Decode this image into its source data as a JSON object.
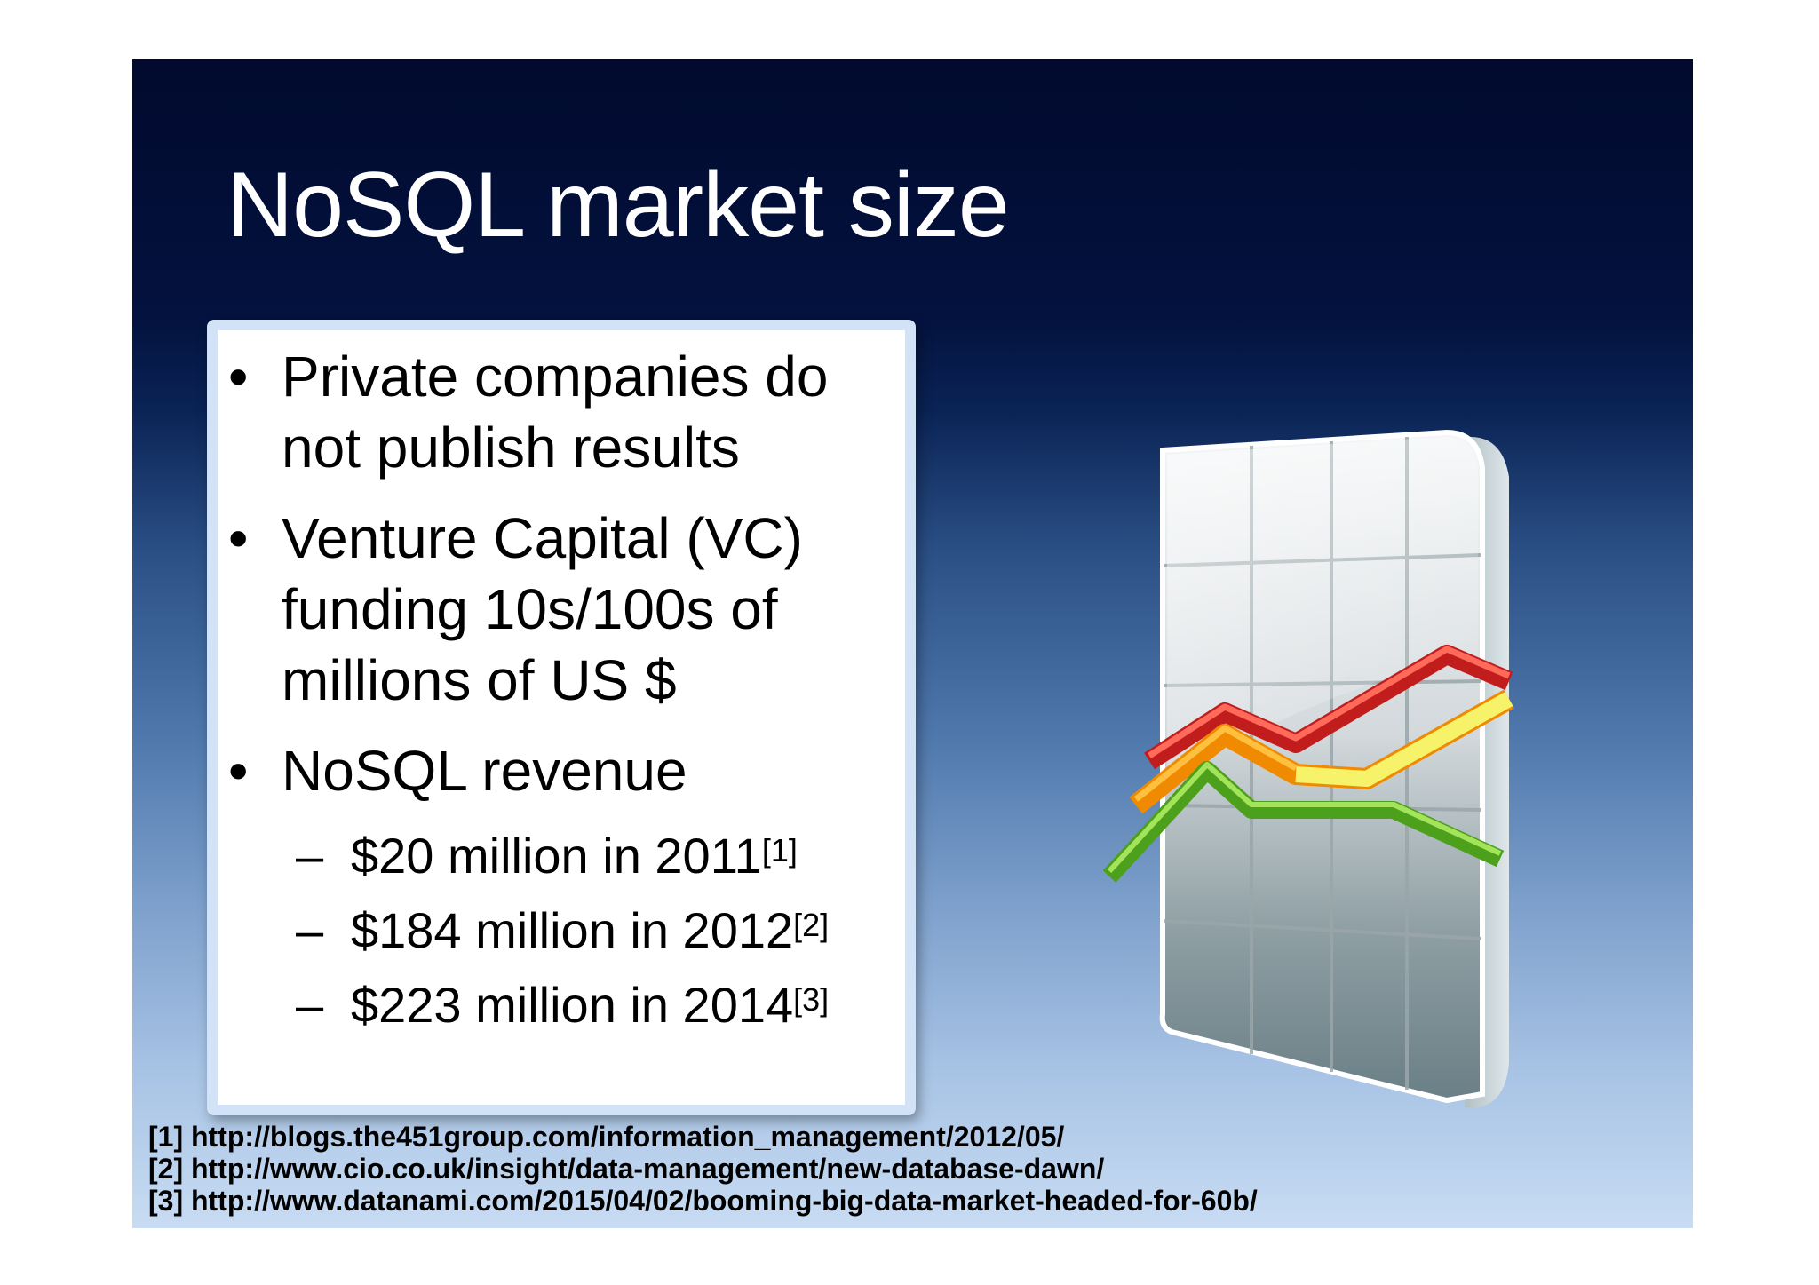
{
  "slide": {
    "title": "NoSQL market size",
    "bullets": [
      "Private companies do not publish results",
      "Venture Capital (VC) funding 10s/100s of millions of US $",
      "NoSQL revenue"
    ],
    "sub_bullets": [
      {
        "text": "$20 million in 2011",
        "ref": "[1]"
      },
      {
        "text": "$184 million in 2012",
        "ref": "[2]"
      },
      {
        "text": "$223 million in 2014",
        "ref": "[3]"
      }
    ],
    "references": [
      "[1] http://blogs.the451group.com/information_management/2012/05/",
      "[2] http://www.cio.co.uk/insight/data-management/new-database-dawn/",
      "[3] http://www.datanami.com/2015/04/02/booming-big-data-market-headed-for-60b/"
    ],
    "illustration": {
      "icon": "line-chart-icon"
    },
    "colors": {
      "title": "#ffffff",
      "background_top": "#010a2e",
      "background_bottom": "#c8dcf3"
    }
  }
}
